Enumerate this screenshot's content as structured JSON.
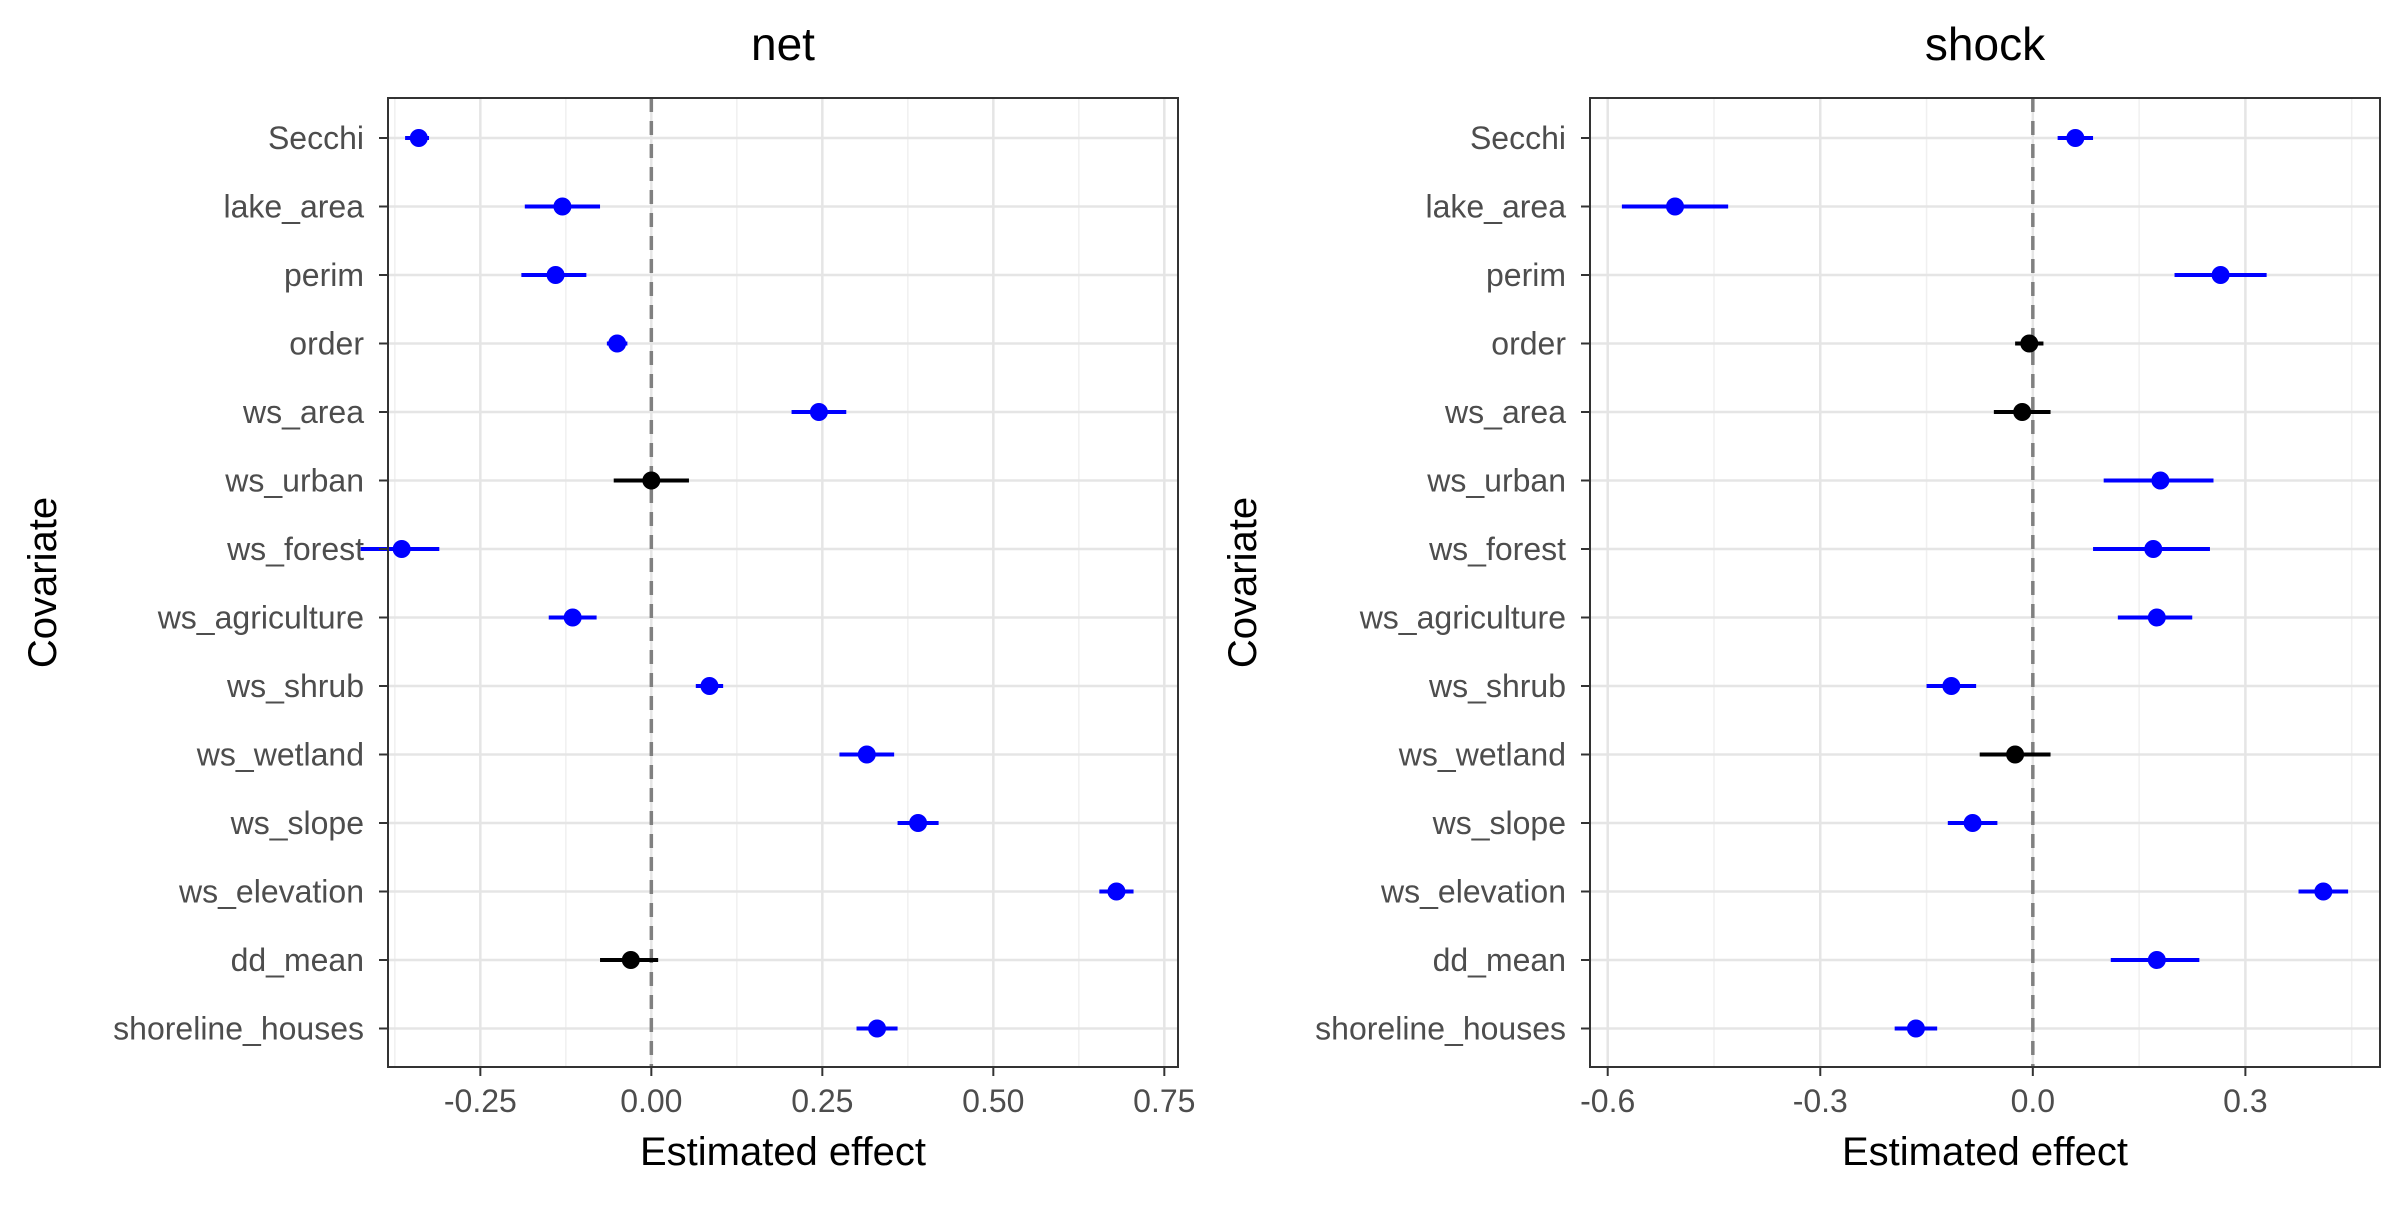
{
  "chart_data": [
    {
      "type": "forest",
      "title": "net",
      "xlabel": "Estimated effect",
      "ylabel": "Covariate",
      "xlim": [
        -0.385,
        0.77
      ],
      "xticks": [
        -0.25,
        0.0,
        0.25,
        0.5,
        0.75
      ],
      "xtick_labels": [
        "-0.25",
        "0.00",
        "0.25",
        "0.50",
        "0.75"
      ],
      "ref_line": 0,
      "grid": true,
      "categories": [
        "Secchi",
        "lake_area",
        "perim",
        "order",
        "ws_area",
        "ws_urban",
        "ws_forest",
        "ws_agriculture",
        "ws_shrub",
        "ws_wetland",
        "ws_slope",
        "ws_elevation",
        "dd_mean",
        "shoreline_houses"
      ],
      "estimates": [
        -0.34,
        -0.13,
        -0.14,
        -0.05,
        0.245,
        0.0,
        -0.365,
        -0.115,
        0.085,
        0.315,
        0.39,
        0.68,
        -0.03,
        0.33
      ],
      "lower": [
        -0.36,
        -0.185,
        -0.19,
        -0.065,
        0.205,
        -0.055,
        -0.425,
        -0.15,
        0.065,
        0.275,
        0.36,
        0.655,
        -0.075,
        0.3
      ],
      "upper": [
        -0.325,
        -0.075,
        -0.095,
        -0.035,
        0.285,
        0.055,
        -0.31,
        -0.08,
        0.105,
        0.355,
        0.42,
        0.705,
        0.01,
        0.36
      ],
      "significant": [
        true,
        true,
        true,
        true,
        true,
        false,
        true,
        true,
        true,
        true,
        true,
        true,
        false,
        true
      ]
    },
    {
      "type": "forest",
      "title": "shock",
      "xlabel": "Estimated effect",
      "ylabel": "Covariate",
      "xlim": [
        -0.625,
        0.49
      ],
      "xticks": [
        -0.6,
        -0.3,
        0.0,
        0.3
      ],
      "xtick_labels": [
        "-0.6",
        "-0.3",
        "0.0",
        "0.3"
      ],
      "ref_line": 0,
      "grid": true,
      "categories": [
        "Secchi",
        "lake_area",
        "perim",
        "order",
        "ws_area",
        "ws_urban",
        "ws_forest",
        "ws_agriculture",
        "ws_shrub",
        "ws_wetland",
        "ws_slope",
        "ws_elevation",
        "dd_mean",
        "shoreline_houses"
      ],
      "estimates": [
        0.06,
        -0.505,
        0.265,
        -0.005,
        -0.015,
        0.18,
        0.17,
        0.175,
        -0.115,
        -0.025,
        -0.085,
        0.41,
        0.175,
        -0.165
      ],
      "lower": [
        0.035,
        -0.58,
        0.2,
        -0.025,
        -0.055,
        0.1,
        0.085,
        0.12,
        -0.15,
        -0.075,
        -0.12,
        0.375,
        0.11,
        -0.195
      ],
      "upper": [
        0.085,
        -0.43,
        0.33,
        0.015,
        0.025,
        0.255,
        0.25,
        0.225,
        -0.08,
        0.025,
        -0.05,
        0.445,
        0.235,
        -0.135
      ],
      "significant": [
        true,
        true,
        true,
        false,
        false,
        true,
        true,
        true,
        true,
        false,
        true,
        true,
        true,
        true
      ]
    }
  ],
  "colors": {
    "significant": "#0000ff",
    "nonsignificant": "#000000",
    "ref_line": "#808080",
    "grid_major": "#e5e5e5",
    "grid_minor": "#f0f0f0",
    "panel_border": "#333333",
    "label_text": "#4d4d4d"
  }
}
